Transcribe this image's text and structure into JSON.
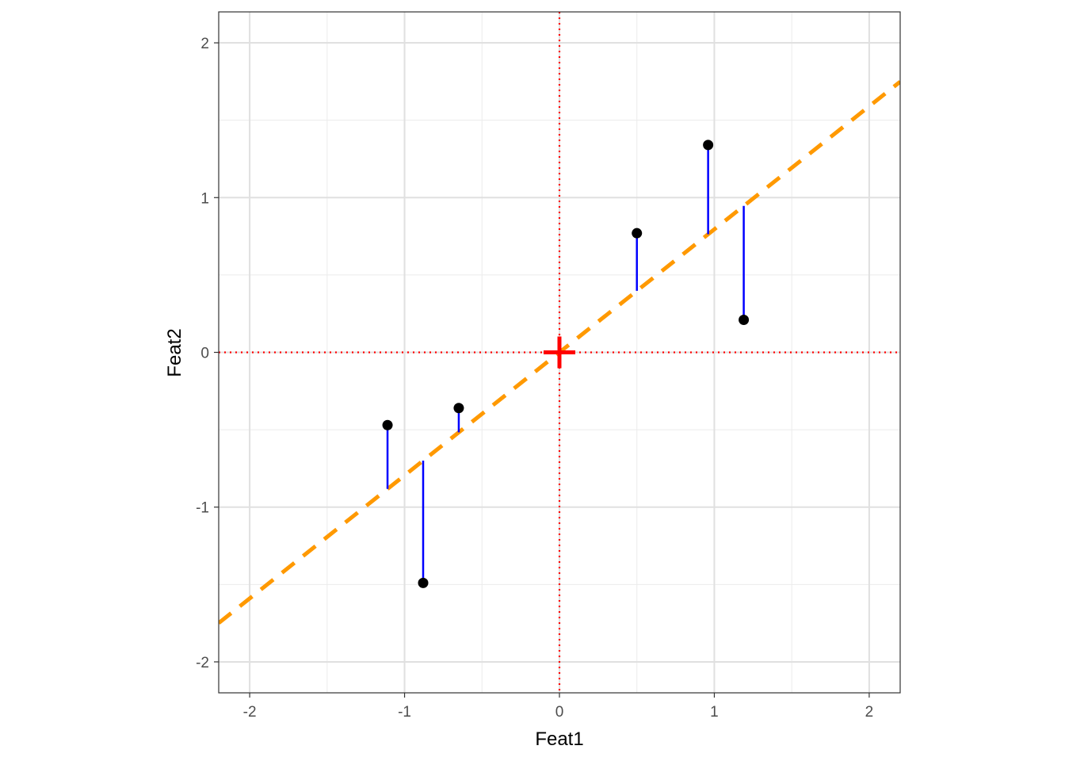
{
  "chart_data": {
    "type": "scatter",
    "title": "",
    "xlabel": "Feat1",
    "ylabel": "Feat2",
    "xlim": [
      -2.2,
      2.2
    ],
    "ylim": [
      -2.2,
      2.2
    ],
    "x_ticks": [
      -2,
      -1,
      0,
      1,
      2
    ],
    "y_ticks": [
      -2,
      -1,
      0,
      1,
      2
    ],
    "x_tick_labels": [
      "-2",
      "-1",
      "0",
      "1",
      "2"
    ],
    "y_tick_labels": [
      "-2",
      "-1",
      "0",
      "1",
      "2"
    ],
    "grid": true,
    "legend": "none",
    "points": {
      "x": [
        -1.11,
        -0.88,
        -0.65,
        0.5,
        0.96,
        1.19
      ],
      "y": [
        -0.47,
        -1.49,
        -0.36,
        0.77,
        1.34,
        0.21
      ],
      "color": "#000000"
    },
    "fit_line": {
      "slope": 0.795,
      "intercept": 0.0,
      "style": "dashed",
      "color": "#FF9900"
    },
    "residuals": {
      "color": "#0000FF"
    },
    "reference_lines": {
      "x": 0,
      "y": 0,
      "style": "dotted",
      "color": "#FF0000"
    },
    "center_marker": {
      "x": 0,
      "y": 0,
      "shape": "plus",
      "color": "#FF0000"
    }
  }
}
